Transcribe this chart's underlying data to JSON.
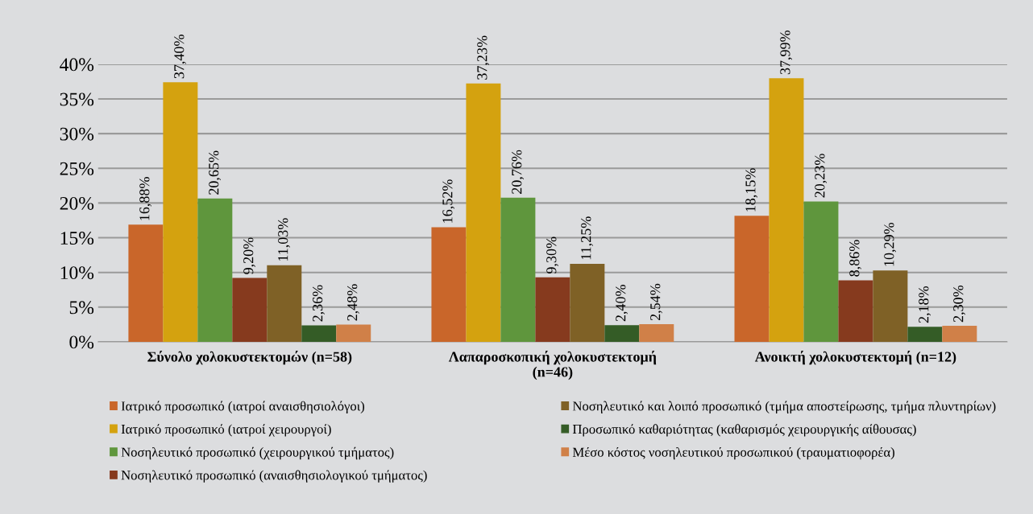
{
  "chart_data": {
    "type": "bar",
    "categories": [
      "Σύνολο χολοκυστεκτομών (n=58)",
      "Λαπαροσκοπική χολοκυστεκτομή\n(n=46)",
      "Ανοικτή χολοκυστεκτομή (n=12)"
    ],
    "series": [
      {
        "name": "Ιατρικό προσωπικό (ιατροί αναισθησιολόγοι)",
        "color": "#c9662a",
        "values": [
          16.88,
          16.52,
          18.15
        ],
        "value_labels": [
          "16,88%",
          "16,52%",
          "18,15%"
        ]
      },
      {
        "name": "Ιατρικό προσωπικό (ιατροί χειρουργοί)",
        "color": "#d4a20f",
        "values": [
          37.4,
          37.23,
          37.99
        ],
        "value_labels": [
          "37,40%",
          "37,23%",
          "37,99%"
        ]
      },
      {
        "name": "Νοσηλευτικό προσωπικό (χειρουργικού τμήματος)",
        "color": "#5f963d",
        "values": [
          20.65,
          20.76,
          20.23
        ],
        "value_labels": [
          "20,65%",
          "20,76%",
          "20,23%"
        ]
      },
      {
        "name": "Νοσηλευτικό προσωπικό (αναισθησιολογικού τμήματος)",
        "color": "#863a1e",
        "values": [
          9.2,
          9.3,
          8.86
        ],
        "value_labels": [
          "9,20%",
          "9,30%",
          "8,86%"
        ]
      },
      {
        "name": "Νοσηλευτικό και λοιπό προσωπικό (τμήμα αποστείρωσης, τμήμα πλυντηρίων)",
        "color": "#7f6126",
        "values": [
          11.03,
          11.25,
          10.29
        ],
        "value_labels": [
          "11,03%",
          "11,25%",
          "10,29%"
        ]
      },
      {
        "name": "Προσωπικό καθαριότητας (καθαρισμός χειρουργικής αίθουσας)",
        "color": "#345c26",
        "values": [
          2.36,
          2.4,
          2.18
        ],
        "value_labels": [
          "2,36%",
          "2,40%",
          "2,18%"
        ]
      },
      {
        "name": "Μέσο κόστος νοσηλευτικού προσωπικού (τραυματιοφορέα)",
        "color": "#d08048",
        "values": [
          2.48,
          2.54,
          2.3
        ],
        "value_labels": [
          "2,48%",
          "2,54%",
          "2,30%"
        ]
      }
    ],
    "ylim": [
      0,
      40
    ],
    "yticks": [
      {
        "value": 0,
        "label": "0%"
      },
      {
        "value": 5,
        "label": "5%"
      },
      {
        "value": 10,
        "label": "10%"
      },
      {
        "value": 15,
        "label": "15%"
      },
      {
        "value": 20,
        "label": "20%"
      },
      {
        "value": 25,
        "label": "25%"
      },
      {
        "value": 30,
        "label": "30%"
      },
      {
        "value": 35,
        "label": "35%"
      },
      {
        "value": 40,
        "label": "40%"
      }
    ],
    "grid": "y",
    "legend": "bottom"
  }
}
